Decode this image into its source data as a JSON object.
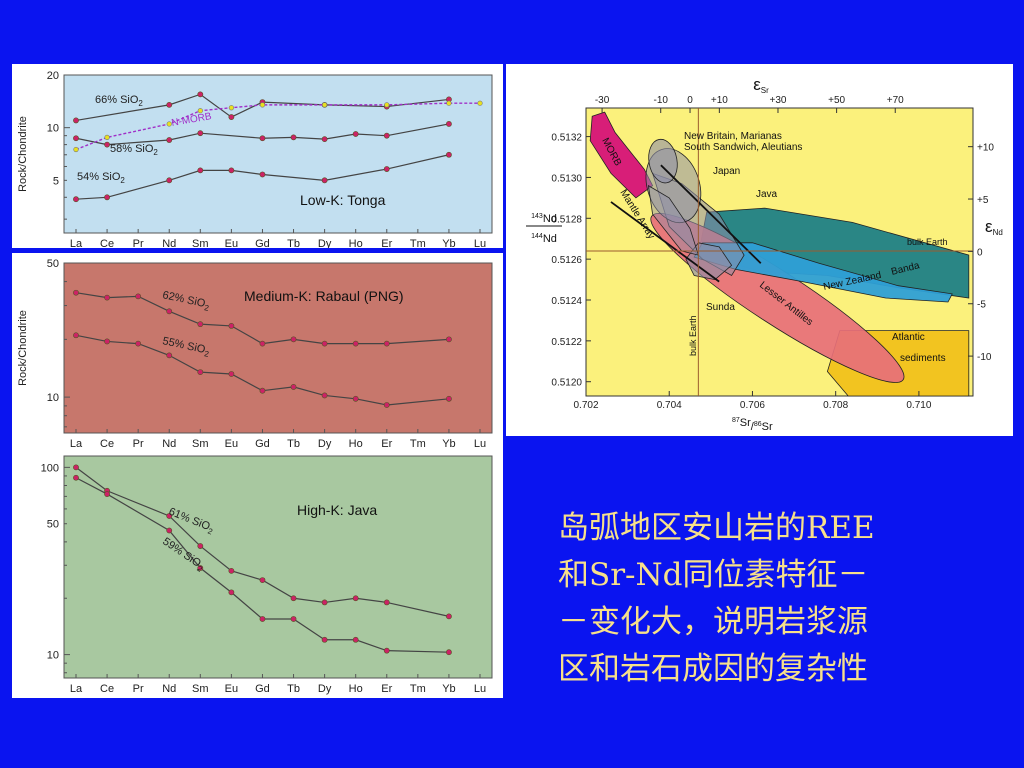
{
  "ree_elements": [
    "La",
    "Ce",
    "Pr",
    "Nd",
    "Sm",
    "Eu",
    "Gd",
    "Tb",
    "Dy",
    "Ho",
    "Er",
    "Tm",
    "Yb",
    "Lu"
  ],
  "chart_data": [
    {
      "type": "line",
      "title": "Low-K:  Tonga",
      "ylabel": "Rock/Chondrite",
      "yscale": "log",
      "ylim": [
        2.5,
        20
      ],
      "yticks": [
        "20",
        "10",
        "5"
      ],
      "colors": {
        "background": "#c2dff0",
        "line": "#444444",
        "marker": "#cc2266",
        "nmorb": "#a030c8",
        "nmorb_marker": "#e8e020"
      },
      "series": [
        {
          "name": "66% SiO",
          "sub": "2",
          "x": [
            "La",
            "Nd",
            "Sm",
            "Eu",
            "Gd",
            "Dy",
            "Er",
            "Yb"
          ],
          "values": [
            11,
            13.5,
            15.5,
            11.5,
            14,
            13.5,
            13.2,
            14.5
          ]
        },
        {
          "name": "58% SiO",
          "sub": "2",
          "x": [
            "La",
            "Ce",
            "Nd",
            "Sm",
            "Gd",
            "Tb",
            "Dy",
            "Ho",
            "Er",
            "Yb"
          ],
          "values": [
            8.7,
            8,
            8.5,
            9.3,
            8.7,
            8.8,
            8.6,
            9.2,
            9,
            10.5
          ]
        },
        {
          "name": "54% SiO",
          "sub": "2",
          "x": [
            "La",
            "Ce",
            "Nd",
            "Sm",
            "Eu",
            "Gd",
            "Dy",
            "Er",
            "Yb"
          ],
          "values": [
            3.9,
            4,
            5,
            5.7,
            5.7,
            5.4,
            5,
            5.8,
            7
          ]
        },
        {
          "name": "N-MORB",
          "x": [
            "La",
            "Ce",
            "Nd",
            "Sm",
            "Eu",
            "Gd",
            "Dy",
            "Er",
            "Yb",
            "Lu"
          ],
          "values": [
            7.5,
            8.8,
            10.5,
            12.5,
            13,
            13.5,
            13.5,
            13.5,
            13.8,
            13.8
          ]
        }
      ]
    },
    {
      "type": "line",
      "title": "Medium-K:  Rabaul (PNG)",
      "ylabel": "Rock/Chondrite",
      "yscale": "log",
      "ylim": [
        6.5,
        50
      ],
      "yticks": [
        "50",
        "10"
      ],
      "colors": {
        "background": "#c7776c",
        "line": "#444444",
        "marker": "#cc2266"
      },
      "series": [
        {
          "name": "62% SiO",
          "sub": "2",
          "x": [
            "La",
            "Ce",
            "Pr",
            "Nd",
            "Sm",
            "Eu",
            "Gd",
            "Tb",
            "Dy",
            "Ho",
            "Er",
            "Yb"
          ],
          "values": [
            35,
            33,
            33.5,
            28,
            24,
            23.5,
            19,
            20,
            19,
            19,
            19,
            20
          ]
        },
        {
          "name": "55% SiO",
          "sub": "2",
          "x": [
            "La",
            "Ce",
            "Pr",
            "Nd",
            "Sm",
            "Eu",
            "Gd",
            "Tb",
            "Dy",
            "Ho",
            "Er",
            "Yb"
          ],
          "values": [
            21,
            19.5,
            19,
            16.5,
            13.5,
            13.2,
            10.8,
            11.3,
            10.2,
            9.8,
            9.1,
            9.8
          ]
        }
      ]
    },
    {
      "type": "line",
      "title": "High-K:  Java",
      "yscale": "log",
      "ylim": [
        7.5,
        115
      ],
      "yticks": [
        "100",
        "50",
        "10"
      ],
      "colors": {
        "background": "#a8c8a0",
        "line": "#444444",
        "marker": "#cc2266"
      },
      "series": [
        {
          "name": "61% SiO",
          "sub": "2",
          "x": [
            "La",
            "Ce",
            "Nd",
            "Sm",
            "Eu",
            "Gd",
            "Tb",
            "Dy",
            "Ho",
            "Er",
            "Yb"
          ],
          "values": [
            100,
            75,
            55,
            38,
            28,
            25,
            20,
            19,
            20,
            19,
            16
          ]
        },
        {
          "name": "59% SiO",
          "sub": "2",
          "x": [
            "La",
            "Ce",
            "Nd",
            "Sm",
            "Eu",
            "Gd",
            "Tb",
            "Dy",
            "Ho",
            "Er",
            "Yb"
          ],
          "values": [
            88,
            72,
            46,
            29,
            21.5,
            15.5,
            15.5,
            12,
            12,
            10.5,
            10.3
          ]
        }
      ]
    },
    {
      "type": "area",
      "xlabel": "Sr/Sr",
      "xlabel_parts": {
        "sup1": "87",
        "el1": "Sr",
        "sup2": "86",
        "el2": "Sr"
      },
      "ylabel_parts": {
        "sup1": "143",
        "el1": "Nd",
        "sup2": "144",
        "el2": "Nd"
      },
      "top_axis_label": {
        "symbol": "ε",
        "sub": "Sr"
      },
      "right_axis_label": {
        "symbol": "ε",
        "sub": "Nd"
      },
      "xlim": [
        0.702,
        0.7113
      ],
      "ylim": [
        0.51193,
        0.51334
      ],
      "xticks": [
        "0.702",
        "0.704",
        "0.706",
        "0.708",
        "0.710"
      ],
      "yticks": [
        "0.5132",
        "0.5130",
        "0.5128",
        "0.5126",
        "0.5124",
        "0.5122",
        "0.5120"
      ],
      "top_ticks": [
        "-30",
        "-10",
        "0",
        "+10",
        "+30",
        "+50",
        "+70"
      ],
      "right_ticks": [
        "+10",
        "+5",
        "0",
        "-5",
        "-10"
      ],
      "reference_lines": [
        "bulk Earth",
        "bulk Earth"
      ],
      "fields": [
        "Atlantic sediments",
        "Banda",
        "Lesser Antilles",
        "New Zealand",
        "Java",
        "Japan",
        "Sunda",
        "New Britain, Marianas",
        "South Sandwich, Aleutians",
        "MORB"
      ],
      "annotation": "Mantle Array",
      "colors": {
        "background": "#fbf17c",
        "atlantic": "#f2c420",
        "banda": "#1f7f86",
        "lesser_antilles": "#e76f7a",
        "new_zealand": "#2e9fd6",
        "morb": "#d81e78",
        "island_arc_fields": "#8e8ea8",
        "bulk_earth": "#9b5c2e"
      }
    }
  ],
  "caption_lines": [
    "岛弧地区安山岩的REE",
    "和Sr-Nd同位素特征－",
    "－变化大，说明岩浆源",
    "区和岩石成因的复杂性"
  ]
}
